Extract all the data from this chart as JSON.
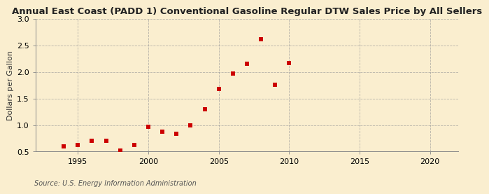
{
  "title": "Annual East Coast (PADD 1) Conventional Gasoline Regular DTW Sales Price by All Sellers",
  "ylabel": "Dollars per Gallon",
  "source": "Source: U.S. Energy Information Administration",
  "years": [
    1994,
    1995,
    1996,
    1997,
    1998,
    1999,
    2000,
    2001,
    2002,
    2003,
    2004,
    2005,
    2006,
    2007,
    2008,
    2009,
    2010
  ],
  "values": [
    0.6,
    0.62,
    0.7,
    0.7,
    0.52,
    0.62,
    0.97,
    0.87,
    0.83,
    0.99,
    1.3,
    1.68,
    1.97,
    2.15,
    2.62,
    1.76,
    2.16
  ],
  "marker_color": "#cc0000",
  "marker_size": 4,
  "background_color": "#faeecf",
  "grid_color": "#999999",
  "xlim": [
    1992,
    2022
  ],
  "ylim": [
    0.5,
    3.0
  ],
  "yticks": [
    0.5,
    1.0,
    1.5,
    2.0,
    2.5,
    3.0
  ],
  "xticks": [
    1995,
    2000,
    2005,
    2010,
    2015,
    2020
  ],
  "title_fontsize": 9.5,
  "label_fontsize": 8,
  "tick_fontsize": 8,
  "source_fontsize": 7
}
